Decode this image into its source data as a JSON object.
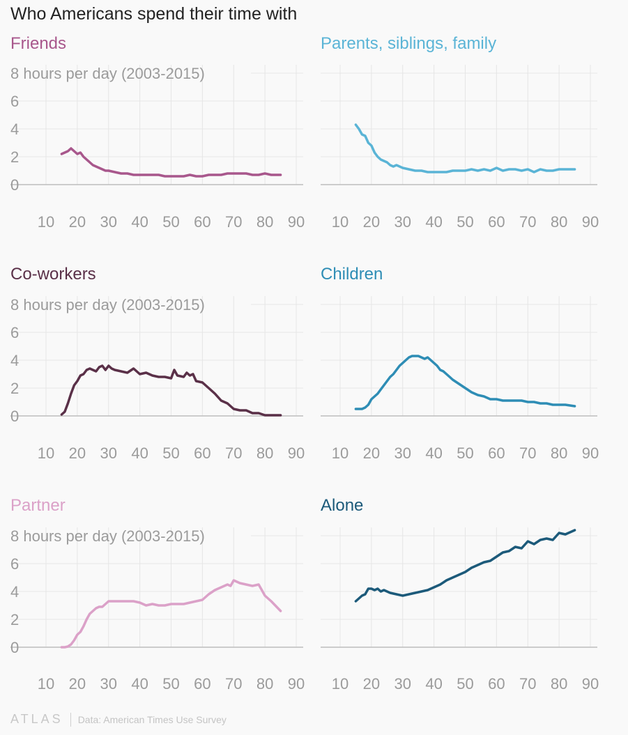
{
  "title": "Who Americans spend their time with",
  "footer": {
    "brand": "ATLAS",
    "source": "Data: American Times Use Survey"
  },
  "colors": {
    "grid": "#e6e6e6",
    "axis": "#bdbdbd",
    "tick": "#9b9b9b"
  },
  "chart_data": [
    {
      "type": "line",
      "title": "Friends",
      "color": "#a8578c",
      "ytick_labels": [
        "8 hours per day (2003-2015)",
        "6",
        "4",
        "2",
        "0"
      ],
      "xlim": [
        10,
        90
      ],
      "ylim": [
        0,
        8
      ],
      "xticks": [
        10,
        20,
        30,
        40,
        50,
        60,
        70,
        80,
        90
      ],
      "x": [
        15,
        16,
        17,
        18,
        19,
        20,
        21,
        22,
        23,
        24,
        25,
        26,
        27,
        28,
        29,
        30,
        32,
        34,
        36,
        38,
        40,
        42,
        44,
        46,
        48,
        50,
        52,
        54,
        56,
        58,
        60,
        62,
        64,
        66,
        68,
        70,
        72,
        74,
        76,
        78,
        80,
        82,
        85
      ],
      "values": [
        2.2,
        2.3,
        2.4,
        2.6,
        2.4,
        2.2,
        2.3,
        2.0,
        1.8,
        1.6,
        1.4,
        1.3,
        1.2,
        1.1,
        1.0,
        1.0,
        0.9,
        0.8,
        0.8,
        0.7,
        0.7,
        0.7,
        0.7,
        0.7,
        0.6,
        0.6,
        0.6,
        0.6,
        0.7,
        0.6,
        0.6,
        0.7,
        0.7,
        0.7,
        0.8,
        0.8,
        0.8,
        0.8,
        0.7,
        0.7,
        0.8,
        0.7,
        0.7
      ]
    },
    {
      "type": "line",
      "title": "Parents, siblings, family",
      "color": "#5ab4d6",
      "ytick_labels": [
        "",
        "",
        "",
        "",
        ""
      ],
      "xlim": [
        10,
        90
      ],
      "ylim": [
        0,
        8
      ],
      "xticks": [
        10,
        20,
        30,
        40,
        50,
        60,
        70,
        80,
        90
      ],
      "x": [
        15,
        16,
        17,
        18,
        19,
        20,
        21,
        22,
        23,
        24,
        25,
        26,
        27,
        28,
        29,
        30,
        32,
        34,
        36,
        38,
        40,
        42,
        44,
        46,
        48,
        50,
        52,
        54,
        56,
        58,
        60,
        62,
        64,
        66,
        68,
        70,
        72,
        74,
        76,
        78,
        80,
        82,
        85
      ],
      "values": [
        4.3,
        4.0,
        3.6,
        3.5,
        3.0,
        2.8,
        2.3,
        2.0,
        1.8,
        1.7,
        1.6,
        1.4,
        1.3,
        1.4,
        1.3,
        1.2,
        1.1,
        1.0,
        1.0,
        0.9,
        0.9,
        0.9,
        0.9,
        1.0,
        1.0,
        1.0,
        1.1,
        1.0,
        1.1,
        1.0,
        1.2,
        1.0,
        1.1,
        1.1,
        1.0,
        1.1,
        0.9,
        1.1,
        1.0,
        1.0,
        1.1,
        1.1,
        1.1
      ]
    },
    {
      "type": "line",
      "title": "Co-workers",
      "color": "#5a3048",
      "ytick_labels": [
        "8 hours per day (2003-2015)",
        "6",
        "4",
        "2",
        "0"
      ],
      "xlim": [
        10,
        90
      ],
      "ylim": [
        0,
        8
      ],
      "xticks": [
        10,
        20,
        30,
        40,
        50,
        60,
        70,
        80,
        90
      ],
      "x": [
        15,
        16,
        17,
        18,
        19,
        20,
        21,
        22,
        23,
        24,
        25,
        26,
        27,
        28,
        29,
        30,
        31,
        32,
        34,
        36,
        38,
        39,
        40,
        42,
        44,
        46,
        48,
        50,
        51,
        52,
        54,
        55,
        56,
        57,
        58,
        60,
        62,
        64,
        66,
        68,
        70,
        72,
        74,
        76,
        78,
        80,
        82,
        85
      ],
      "values": [
        0.1,
        0.3,
        0.9,
        1.6,
        2.2,
        2.5,
        2.9,
        3.0,
        3.3,
        3.4,
        3.3,
        3.2,
        3.5,
        3.6,
        3.3,
        3.6,
        3.4,
        3.3,
        3.2,
        3.1,
        3.4,
        3.2,
        3.0,
        3.1,
        2.9,
        2.8,
        2.8,
        2.7,
        3.3,
        2.9,
        2.8,
        3.1,
        2.9,
        3.0,
        2.5,
        2.4,
        2.0,
        1.6,
        1.1,
        0.9,
        0.5,
        0.4,
        0.4,
        0.2,
        0.2,
        0.05,
        0.05,
        0.05
      ]
    },
    {
      "type": "line",
      "title": "Children",
      "color": "#2e8db5",
      "ytick_labels": [
        "",
        "",
        "",
        "",
        ""
      ],
      "xlim": [
        10,
        90
      ],
      "ylim": [
        0,
        8
      ],
      "xticks": [
        10,
        20,
        30,
        40,
        50,
        60,
        70,
        80,
        90
      ],
      "x": [
        15,
        16,
        17,
        18,
        19,
        20,
        21,
        22,
        23,
        24,
        25,
        26,
        27,
        28,
        29,
        30,
        31,
        32,
        33,
        34,
        35,
        36,
        37,
        38,
        39,
        40,
        41,
        42,
        43,
        44,
        45,
        46,
        48,
        50,
        52,
        54,
        56,
        58,
        60,
        62,
        64,
        66,
        68,
        70,
        72,
        74,
        76,
        78,
        80,
        82,
        85
      ],
      "values": [
        0.5,
        0.5,
        0.5,
        0.6,
        0.8,
        1.2,
        1.4,
        1.6,
        1.9,
        2.2,
        2.5,
        2.8,
        3.0,
        3.3,
        3.6,
        3.8,
        4.0,
        4.2,
        4.3,
        4.3,
        4.3,
        4.2,
        4.1,
        4.2,
        4.0,
        3.8,
        3.6,
        3.3,
        3.2,
        3.0,
        2.8,
        2.6,
        2.3,
        2.0,
        1.7,
        1.5,
        1.4,
        1.2,
        1.2,
        1.1,
        1.1,
        1.1,
        1.1,
        1.0,
        1.0,
        0.9,
        0.9,
        0.8,
        0.8,
        0.8,
        0.7
      ]
    },
    {
      "type": "line",
      "title": "Partner",
      "color": "#dba1c8",
      "ytick_labels": [
        "8 hours per day (2003-2015)",
        "6",
        "4",
        "2",
        "0"
      ],
      "xlim": [
        10,
        90
      ],
      "ylim": [
        0,
        8
      ],
      "xticks": [
        10,
        20,
        30,
        40,
        50,
        60,
        70,
        80,
        90
      ],
      "x": [
        15,
        16,
        17,
        18,
        19,
        20,
        21,
        22,
        23,
        24,
        25,
        26,
        27,
        28,
        29,
        30,
        32,
        34,
        36,
        38,
        40,
        42,
        44,
        46,
        48,
        50,
        52,
        54,
        56,
        58,
        60,
        62,
        64,
        66,
        68,
        69,
        70,
        72,
        74,
        76,
        78,
        80,
        82,
        85
      ],
      "values": [
        0.0,
        0.0,
        0.05,
        0.2,
        0.5,
        0.9,
        1.1,
        1.5,
        2.0,
        2.4,
        2.6,
        2.8,
        2.9,
        2.9,
        3.1,
        3.3,
        3.3,
        3.3,
        3.3,
        3.3,
        3.2,
        3.0,
        3.1,
        3.0,
        3.0,
        3.1,
        3.1,
        3.1,
        3.2,
        3.3,
        3.4,
        3.8,
        4.1,
        4.3,
        4.5,
        4.4,
        4.8,
        4.6,
        4.5,
        4.4,
        4.5,
        3.7,
        3.3,
        2.6
      ]
    },
    {
      "type": "line",
      "title": "Alone",
      "color": "#1c5a7a",
      "ytick_labels": [
        "",
        "",
        "",
        "",
        ""
      ],
      "xlim": [
        10,
        90
      ],
      "ylim": [
        0,
        8
      ],
      "xticks": [
        10,
        20,
        30,
        40,
        50,
        60,
        70,
        80,
        90
      ],
      "x": [
        15,
        16,
        17,
        18,
        19,
        20,
        21,
        22,
        23,
        24,
        25,
        26,
        28,
        30,
        32,
        34,
        36,
        38,
        40,
        42,
        44,
        46,
        48,
        50,
        52,
        54,
        56,
        58,
        60,
        62,
        64,
        66,
        68,
        70,
        72,
        74,
        76,
        78,
        80,
        82,
        85
      ],
      "values": [
        3.3,
        3.5,
        3.7,
        3.8,
        4.2,
        4.2,
        4.1,
        4.2,
        4.0,
        4.1,
        4.0,
        3.9,
        3.8,
        3.7,
        3.8,
        3.9,
        4.0,
        4.1,
        4.3,
        4.5,
        4.8,
        5.0,
        5.2,
        5.4,
        5.7,
        5.9,
        6.1,
        6.2,
        6.5,
        6.8,
        6.9,
        7.2,
        7.1,
        7.6,
        7.4,
        7.7,
        7.8,
        7.7,
        8.2,
        8.1,
        8.4
      ]
    }
  ]
}
